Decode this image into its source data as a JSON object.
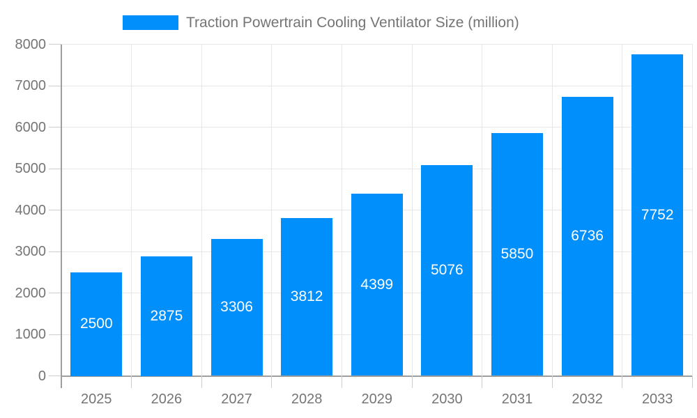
{
  "legend": {
    "label": "Traction Powertrain Cooling Ventilator Size (million)"
  },
  "colors": {
    "bar": "#008ffb",
    "bar_label_text": "#ffffff",
    "axis_text": "#757575",
    "gridline": "#e6e6e6",
    "axis_line": "#9e9e9e",
    "tick": "#cccccc",
    "background": "#ffffff"
  },
  "chart_data": {
    "type": "bar",
    "title": "Traction Powertrain Cooling Ventilator Size (million)",
    "series_name": "Traction Powertrain Cooling Ventilator Size (million)",
    "categories": [
      "2025",
      "2026",
      "2027",
      "2028",
      "2029",
      "2030",
      "2031",
      "2032",
      "2033"
    ],
    "values": [
      2500,
      2875,
      3306,
      3812,
      4399,
      5076,
      5850,
      6736,
      7752
    ],
    "bar_value_labels": [
      "2500",
      "2875",
      "3306",
      "3812",
      "4399",
      "5076",
      "5850",
      "6736",
      "7752"
    ],
    "xlabel": "",
    "ylabel": "",
    "ylim": [
      0,
      8000
    ],
    "ytick_step": 1000,
    "ytick_labels": [
      "0",
      "1000",
      "2000",
      "3000",
      "4000",
      "5000",
      "6000",
      "7000",
      "8000"
    ],
    "grid": true,
    "legend_position": "top",
    "value_labels_inside_bars": true
  }
}
